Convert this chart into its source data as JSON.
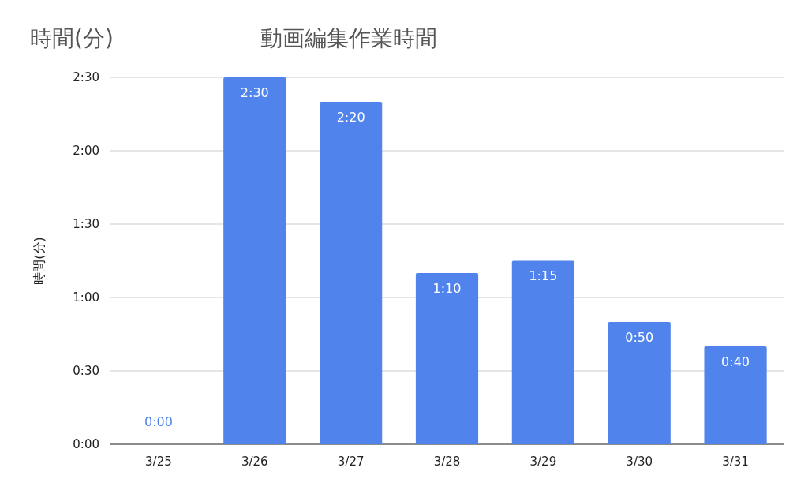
{
  "chart_data": {
    "type": "bar",
    "title": "動画編集作業時間",
    "ylabel": "時間(分)",
    "annotations": [
      "時間(分)"
    ],
    "categories": [
      "3/25",
      "3/26",
      "3/27",
      "3/28",
      "3/29",
      "3/30",
      "3/31"
    ],
    "values": [
      0,
      150,
      140,
      70,
      75,
      50,
      40
    ],
    "value_labels": [
      "0:00",
      "2:30",
      "2:20",
      "1:10",
      "1:15",
      "0:50",
      "0:40"
    ],
    "color": "#5083ec",
    "ylim": [
      0,
      150
    ],
    "yticks": [
      {
        "value": 0,
        "label": "0:00"
      },
      {
        "value": 30,
        "label": "0:30"
      },
      {
        "value": 60,
        "label": "1:00"
      },
      {
        "value": 90,
        "label": "1:30"
      },
      {
        "value": 120,
        "label": "2:00"
      },
      {
        "value": 150,
        "label": "2:30"
      }
    ],
    "grid": "y"
  }
}
